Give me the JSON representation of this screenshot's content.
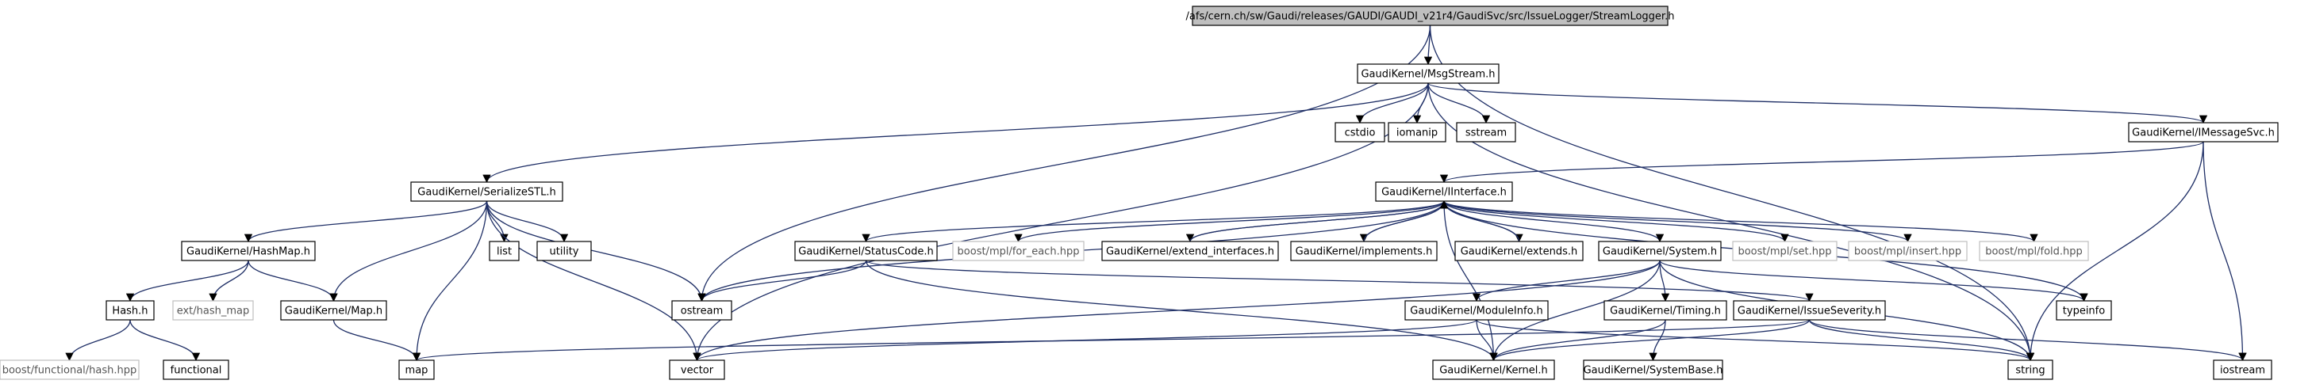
{
  "diagram": {
    "type": "include-dependency-graph",
    "colors": {
      "edge": "#1f2f66",
      "root_fill": "#bfbfbf",
      "external_border": "#bfbfbf"
    },
    "nodes": [
      {
        "id": "root",
        "label": "/afs/cern.ch/sw/Gaudi/releases/GAUDI/GAUDI_v21r4/GaudiSvc/src/IssueLogger/StreamLogger.h",
        "kind": "root"
      },
      {
        "id": "msgstream",
        "label": "GaudiKernel/MsgStream.h",
        "kind": "normal"
      },
      {
        "id": "cstdio",
        "label": "cstdio",
        "kind": "normal"
      },
      {
        "id": "iomanip",
        "label": "iomanip",
        "kind": "normal"
      },
      {
        "id": "sstream",
        "label": "sstream",
        "kind": "normal"
      },
      {
        "id": "imessagesvc",
        "label": "GaudiKernel/IMessageSvc.h",
        "kind": "normal"
      },
      {
        "id": "serializestl",
        "label": "GaudiKernel/SerializeSTL.h",
        "kind": "normal"
      },
      {
        "id": "iinterface",
        "label": "GaudiKernel/IInterface.h",
        "kind": "normal"
      },
      {
        "id": "list",
        "label": "list",
        "kind": "normal"
      },
      {
        "id": "utility",
        "label": "utility",
        "kind": "normal"
      },
      {
        "id": "hashmaph",
        "label": "GaudiKernel/HashMap.h",
        "kind": "normal"
      },
      {
        "id": "statuscode",
        "label": "GaudiKernel/StatusCode.h",
        "kind": "normal"
      },
      {
        "id": "foreach",
        "label": "boost/mpl/for_each.hpp",
        "kind": "external"
      },
      {
        "id": "extifaces",
        "label": "GaudiKernel/extend_interfaces.h",
        "kind": "normal"
      },
      {
        "id": "implements",
        "label": "GaudiKernel/implements.h",
        "kind": "normal"
      },
      {
        "id": "extends",
        "label": "GaudiKernel/extends.h",
        "kind": "normal"
      },
      {
        "id": "system",
        "label": "GaudiKernel/System.h",
        "kind": "normal"
      },
      {
        "id": "mplset",
        "label": "boost/mpl/set.hpp",
        "kind": "external"
      },
      {
        "id": "mplinsert",
        "label": "boost/mpl/insert.hpp",
        "kind": "external"
      },
      {
        "id": "mplfold",
        "label": "boost/mpl/fold.hpp",
        "kind": "external"
      },
      {
        "id": "hashh",
        "label": "Hash.h",
        "kind": "normal"
      },
      {
        "id": "exthashmap",
        "label": "ext/hash_map",
        "kind": "external"
      },
      {
        "id": "maph",
        "label": "GaudiKernel/Map.h",
        "kind": "normal"
      },
      {
        "id": "ostream",
        "label": "ostream",
        "kind": "normal"
      },
      {
        "id": "moduleinfo",
        "label": "GaudiKernel/ModuleInfo.h",
        "kind": "normal"
      },
      {
        "id": "timing",
        "label": "GaudiKernel/Timing.h",
        "kind": "normal"
      },
      {
        "id": "issueseverity",
        "label": "GaudiKernel/IssueSeverity.h",
        "kind": "normal"
      },
      {
        "id": "typeinfo",
        "label": "typeinfo",
        "kind": "normal"
      },
      {
        "id": "boosthash",
        "label": "boost/functional/hash.hpp",
        "kind": "external"
      },
      {
        "id": "functional",
        "label": "functional",
        "kind": "normal"
      },
      {
        "id": "map",
        "label": "map",
        "kind": "normal"
      },
      {
        "id": "vector",
        "label": "vector",
        "kind": "normal"
      },
      {
        "id": "kernel",
        "label": "GaudiKernel/Kernel.h",
        "kind": "normal"
      },
      {
        "id": "systembase",
        "label": "GaudiKernel/SystemBase.h",
        "kind": "normal"
      },
      {
        "id": "string",
        "label": "string",
        "kind": "normal"
      },
      {
        "id": "iostream",
        "label": "iostream",
        "kind": "normal"
      }
    ],
    "edges": [
      [
        "root",
        "msgstream"
      ],
      [
        "root",
        "ostream"
      ],
      [
        "root",
        "string"
      ],
      [
        "msgstream",
        "cstdio"
      ],
      [
        "msgstream",
        "iomanip"
      ],
      [
        "msgstream",
        "sstream"
      ],
      [
        "msgstream",
        "imessagesvc"
      ],
      [
        "msgstream",
        "serializestl"
      ],
      [
        "msgstream",
        "vector"
      ],
      [
        "msgstream",
        "string"
      ],
      [
        "imessagesvc",
        "iinterface"
      ],
      [
        "imessagesvc",
        "string"
      ],
      [
        "imessagesvc",
        "iostream"
      ],
      [
        "serializestl",
        "list"
      ],
      [
        "serializestl",
        "utility"
      ],
      [
        "serializestl",
        "hashmaph"
      ],
      [
        "serializestl",
        "maph"
      ],
      [
        "serializestl",
        "map"
      ],
      [
        "serializestl",
        "vector"
      ],
      [
        "serializestl",
        "ostream"
      ],
      [
        "hashmaph",
        "hashh"
      ],
      [
        "hashmaph",
        "exthashmap"
      ],
      [
        "hashmaph",
        "maph"
      ],
      [
        "hashh",
        "boosthash"
      ],
      [
        "hashh",
        "functional"
      ],
      [
        "maph",
        "map"
      ],
      [
        "iinterface",
        "ostream"
      ],
      [
        "iinterface",
        "statuscode"
      ],
      [
        "iinterface",
        "foreach"
      ],
      [
        "iinterface",
        "extifaces"
      ],
      [
        "iinterface",
        "implements"
      ],
      [
        "iinterface",
        "extends"
      ],
      [
        "iinterface",
        "system"
      ],
      [
        "iinterface",
        "mplset"
      ],
      [
        "iinterface",
        "mplinsert"
      ],
      [
        "iinterface",
        "mplfold"
      ],
      [
        "iinterface",
        "typeinfo"
      ],
      [
        "iinterface",
        "kernel"
      ],
      [
        "extifaces",
        "iinterface"
      ],
      [
        "implements",
        "iinterface"
      ],
      [
        "extends",
        "iinterface"
      ],
      [
        "statuscode",
        "ostream"
      ],
      [
        "statuscode",
        "issueseverity"
      ],
      [
        "statuscode",
        "kernel"
      ],
      [
        "system",
        "moduleinfo"
      ],
      [
        "system",
        "timing"
      ],
      [
        "system",
        "kernel"
      ],
      [
        "system",
        "typeinfo"
      ],
      [
        "system",
        "string"
      ],
      [
        "system",
        "vector"
      ],
      [
        "moduleinfo",
        "kernel"
      ],
      [
        "moduleinfo",
        "string"
      ],
      [
        "moduleinfo",
        "vector"
      ],
      [
        "timing",
        "kernel"
      ],
      [
        "timing",
        "systembase"
      ],
      [
        "issueseverity",
        "kernel"
      ],
      [
        "issueseverity",
        "string"
      ],
      [
        "issueseverity",
        "map"
      ],
      [
        "issueseverity",
        "iostream"
      ]
    ]
  }
}
